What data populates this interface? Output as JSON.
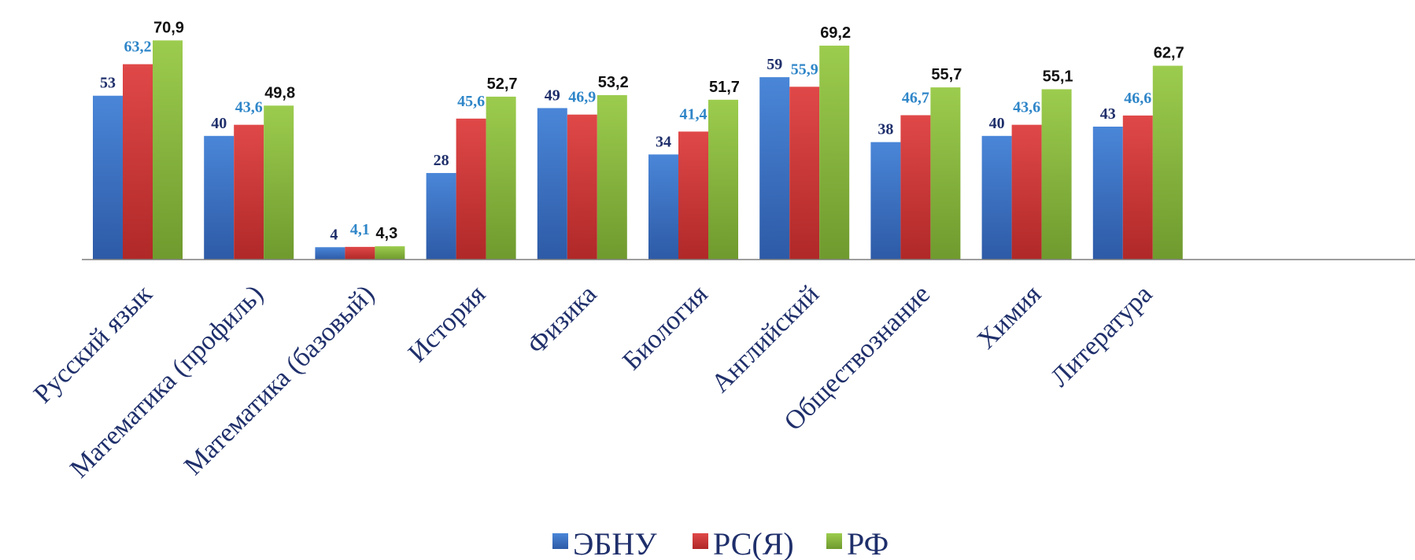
{
  "chart_data": {
    "type": "bar",
    "title": "",
    "xlabel": "",
    "ylabel": "",
    "ylim": [
      0,
      75
    ],
    "grid": false,
    "legend_position": "bottom",
    "categories": [
      "Русский язык",
      "Математика (профиль)",
      "Математика (базовый)",
      "История",
      "Физика",
      "Биология",
      "Английский",
      "Обществознание",
      "Химия",
      "Литература"
    ],
    "series": [
      {
        "name": "ЭБНУ",
        "color": "#3e72c4",
        "label_color": "#1f2f6b",
        "values": [
          53,
          40,
          4,
          28,
          49,
          34,
          59,
          38,
          40,
          43
        ],
        "labels": [
          "53",
          "40",
          "4",
          "28",
          "49",
          "34",
          "59",
          "38",
          "40",
          "43"
        ]
      },
      {
        "name": "РС(Я)",
        "color": "#d23c3c",
        "label_color": "#2f86c8",
        "values": [
          63.2,
          43.6,
          4.1,
          45.6,
          46.9,
          41.4,
          55.9,
          46.7,
          43.6,
          46.6
        ],
        "labels": [
          "63,2",
          "43,6",
          "4,1",
          "45,6",
          "46,9",
          "41,4",
          "55,9",
          "46,7",
          "43,6",
          "46,6"
        ]
      },
      {
        "name": "РФ",
        "color": "#8dc040",
        "label_color": "#111111",
        "values": [
          70.9,
          49.8,
          4.3,
          52.7,
          53.2,
          51.7,
          69.2,
          55.7,
          55.1,
          62.7
        ],
        "labels": [
          "70,9",
          "49,8",
          "4,3",
          "52,7",
          "53,2",
          "51,7",
          "69,2",
          "55,7",
          "55,1",
          "62,7"
        ]
      }
    ]
  }
}
